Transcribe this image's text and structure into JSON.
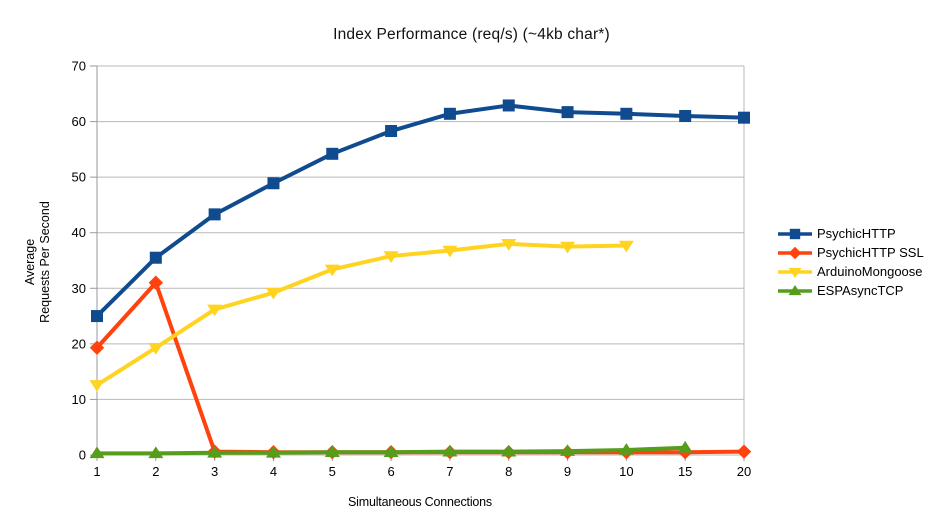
{
  "chart_data": {
    "type": "line",
    "title": "Index Performance (req/s) (~4kb char*)",
    "xlabel": "Simultaneous Connections",
    "ylabel": "Average Requests Per Second",
    "ylabel_lines": [
      "Average",
      "Requests Per Second"
    ],
    "categories": [
      "1",
      "2",
      "3",
      "4",
      "5",
      "6",
      "7",
      "8",
      "9",
      "10",
      "15",
      "20"
    ],
    "yticks": [
      0,
      10,
      20,
      30,
      40,
      50,
      60,
      70
    ],
    "ylim": [
      0,
      70
    ],
    "grid": true,
    "legend_position": "right",
    "grid_color": "#b9b9b9",
    "axis_color": "#9a9a9a",
    "series": [
      {
        "name": "PsychicHTTP",
        "color": "#0F4B8E",
        "marker": "square",
        "values": [
          25.0,
          35.5,
          43.3,
          48.9,
          54.2,
          58.3,
          61.4,
          62.9,
          61.7,
          61.4,
          61.0,
          60.7
        ]
      },
      {
        "name": "PsychicHTTP SSL",
        "color": "#FF420E",
        "marker": "diamond",
        "values": [
          19.3,
          31.0,
          0.6,
          0.5,
          0.5,
          0.5,
          0.5,
          0.5,
          0.5,
          0.5,
          0.5,
          0.6
        ]
      },
      {
        "name": "ArduinoMongoose",
        "color": "#FFD320",
        "marker": "triangle-down",
        "values": [
          12.6,
          19.3,
          26.2,
          29.2,
          33.4,
          35.8,
          36.8,
          38.0,
          37.5,
          37.7,
          null,
          null
        ]
      },
      {
        "name": "ESPAsyncTCP",
        "color": "#579D1C",
        "marker": "triangle-up",
        "values": [
          0.3,
          0.3,
          0.4,
          0.4,
          0.5,
          0.5,
          0.6,
          0.6,
          0.7,
          0.9,
          1.3,
          null
        ]
      }
    ]
  }
}
